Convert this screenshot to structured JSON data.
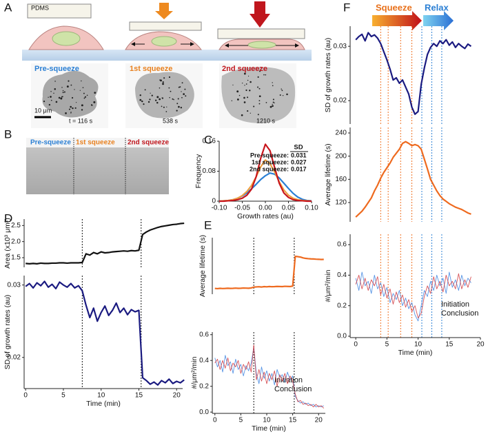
{
  "panel_labels": [
    "A",
    "B",
    "C",
    "D",
    "E",
    "F"
  ],
  "panel_a": {
    "pdms": "PDMS",
    "conditions": [
      "Pre-squeeze",
      "1st squeeze",
      "2nd squeeze"
    ],
    "scale_bar": "10 μm",
    "timestamps": [
      "t = 116 s",
      "538 s",
      "1210 s"
    ]
  },
  "panel_b": {
    "conditions": [
      "Pre-squeeze",
      "1st squeeze",
      "2nd squeeze"
    ]
  },
  "panel_f_header": {
    "squeeze": "Squeeze",
    "relax": "Relax"
  },
  "chart_data": [
    {
      "type": "line",
      "xlabel": "Growth rates (au)",
      "ylabel": "Frequency",
      "x": [
        -0.1,
        -0.09,
        -0.08,
        -0.07,
        -0.06,
        -0.05,
        -0.04,
        -0.03,
        -0.02,
        -0.01,
        0,
        0.01,
        0.02,
        0.03,
        0.04,
        0.05,
        0.06,
        0.07,
        0.08,
        0.09,
        0.1
      ],
      "series": [
        {
          "color": "#2a7fd4",
          "values": [
            0,
            0.001,
            0.002,
            0.004,
            0.008,
            0.014,
            0.022,
            0.033,
            0.045,
            0.058,
            0.068,
            0.075,
            0.072,
            0.062,
            0.048,
            0.034,
            0.021,
            0.011,
            0.005,
            0.002,
            0.001
          ]
        },
        {
          "color": "#f0a040",
          "values": [
            0,
            0.001,
            0.002,
            0.004,
            0.008,
            0.015,
            0.026,
            0.042,
            0.065,
            0.092,
            0.11,
            0.1,
            0.078,
            0.052,
            0.03,
            0.016,
            0.008,
            0.004,
            0.002,
            0.001,
            0
          ]
        },
        {
          "color": "#c8161d",
          "values": [
            0,
            0,
            0.001,
            0.002,
            0.004,
            0.008,
            0.016,
            0.032,
            0.065,
            0.115,
            0.152,
            0.135,
            0.09,
            0.048,
            0.022,
            0.01,
            0.004,
            0.002,
            0.001,
            0,
            0
          ]
        }
      ],
      "xlim": [
        -0.1,
        0.1
      ],
      "ylim": [
        0,
        0.16
      ],
      "xticks": [
        {
          "value": -0.1,
          "label": "-0.10"
        },
        -0.05,
        {
          "value": 0,
          "label": "0.00"
        },
        0.05,
        {
          "value": 0.1,
          "label": "0.10"
        }
      ],
      "yticks": [
        0,
        0.08,
        0.16
      ],
      "sd_table": {
        "header": "SD",
        "rows": [
          {
            "name": "Pre-squeeze:",
            "value": 0.031
          },
          {
            "name": "1st squeeze:",
            "value": 0.027
          },
          {
            "name": "2nd squeeze:",
            "value": 0.017
          }
        ]
      }
    },
    {
      "type": "line",
      "ylabel": "Area (x10³ μm²)",
      "x": [
        0,
        0.5,
        1,
        1.5,
        2,
        2.5,
        3,
        3.5,
        4,
        4.5,
        5,
        5.5,
        6,
        6.5,
        7,
        7.5,
        8,
        8.5,
        9,
        9.5,
        10,
        10.5,
        11,
        11.5,
        12,
        12.5,
        13,
        13.5,
        14,
        14.5,
        15,
        15.5,
        16,
        16.5,
        17,
        17.5,
        18,
        18.5,
        19,
        19.5,
        20,
        20.5,
        21
      ],
      "series": [
        {
          "color": "#111111",
          "values": [
            1.32,
            1.31,
            1.32,
            1.31,
            1.33,
            1.32,
            1.32,
            1.33,
            1.33,
            1.34,
            1.34,
            1.33,
            1.34,
            1.34,
            1.34,
            1.35,
            1.62,
            1.58,
            1.66,
            1.62,
            1.68,
            1.65,
            1.66,
            1.68,
            1.69,
            1.7,
            1.71,
            1.7,
            1.72,
            1.71,
            1.73,
            2.22,
            2.3,
            2.36,
            2.4,
            2.44,
            2.47,
            2.49,
            2.51,
            2.53,
            2.54,
            2.56,
            2.57
          ]
        }
      ],
      "xlim": [
        -0.2,
        20.8
      ],
      "ylim": [
        1.2,
        2.7
      ],
      "yticks": [
        1.5,
        {
          "value": 2,
          "label": "2.0"
        },
        2.5
      ],
      "vlines": [
        {
          "x": 7.5,
          "color": "#111111"
        },
        {
          "x": 15.3,
          "color": "#111111"
        }
      ]
    },
    {
      "type": "line",
      "xlabel": "Time (min)",
      "ylabel": "SD of growth rates (au)",
      "x": [
        0,
        0.5,
        1,
        1.5,
        2,
        2.5,
        3,
        3.5,
        4,
        4.5,
        5,
        5.5,
        6,
        6.5,
        7,
        7.5,
        8,
        8.5,
        9,
        9.5,
        10,
        10.5,
        11,
        11.5,
        12,
        12.5,
        13,
        13.5,
        14,
        14.5,
        15,
        15.5,
        16,
        16.5,
        17,
        17.5,
        18,
        18.5,
        19,
        19.5,
        20,
        20.5,
        21
      ],
      "series": [
        {
          "color": "#1a1a80",
          "values": [
            0.0298,
            0.0302,
            0.0296,
            0.0303,
            0.0299,
            0.0305,
            0.0297,
            0.0301,
            0.0295,
            0.0304,
            0.03,
            0.0297,
            0.0302,
            0.0296,
            0.0299,
            0.0292,
            0.0272,
            0.0255,
            0.0268,
            0.025,
            0.0262,
            0.0271,
            0.0258,
            0.0265,
            0.0275,
            0.0262,
            0.0268,
            0.0259,
            0.0266,
            0.0263,
            0.0265,
            0.0172,
            0.0168,
            0.0163,
            0.0166,
            0.0162,
            0.0168,
            0.0165,
            0.017,
            0.0164,
            0.0167,
            0.0165,
            0.0169
          ]
        }
      ],
      "xlim": [
        -0.2,
        20.8
      ],
      "ylim": [
        0.0157,
        0.0313
      ],
      "xticks": [
        0,
        5,
        10,
        15,
        20
      ],
      "yticks": [
        0.02,
        0.03
      ],
      "vlines": [
        {
          "x": 7.5,
          "color": "#111111"
        },
        {
          "x": 15.3,
          "color": "#111111"
        }
      ]
    },
    {
      "type": "line",
      "ylabel": "Average lifetime (s)",
      "x": [
        0,
        0.5,
        1,
        1.5,
        2,
        2.5,
        3,
        3.5,
        4,
        4.5,
        5,
        5.5,
        6,
        6.5,
        7,
        7.5,
        8,
        8.5,
        9,
        9.5,
        10,
        10.5,
        11,
        11.5,
        12,
        12.5,
        13,
        13.5,
        14,
        14.5,
        15,
        15.5,
        16,
        16.5,
        17,
        17.5,
        18,
        18.5,
        19,
        19.5,
        20,
        20.5,
        21
      ],
      "series": [
        {
          "color": "#ee6a1f",
          "values": [
            57,
            55,
            58,
            56,
            57,
            59,
            57,
            58,
            60,
            58,
            59,
            61,
            60,
            59,
            62,
            70,
            72,
            74,
            71,
            75,
            73,
            76,
            74,
            75,
            77,
            76,
            75,
            78,
            77,
            76,
            80,
            375,
            372,
            368,
            360,
            355,
            352,
            350,
            349,
            347,
            346,
            344,
            345
          ]
        }
      ],
      "xlim": [
        -0.5,
        21.3
      ],
      "ylim": [
        0,
        560
      ],
      "vlines": [
        {
          "x": 7.5,
          "color": "#111111"
        },
        {
          "x": 15.3,
          "color": "#111111"
        }
      ]
    },
    {
      "type": "line",
      "xlabel": "Time (min)",
      "ylabel": "#/μm²/min",
      "x": [
        0,
        0.5,
        1,
        1.5,
        2,
        2.5,
        3,
        3.5,
        4,
        4.5,
        5,
        5.5,
        6,
        6.5,
        7,
        7.5,
        8,
        8.5,
        9,
        9.5,
        10,
        10.5,
        11,
        11.5,
        12,
        12.5,
        13,
        13.5,
        14,
        14.5,
        15,
        15.5,
        16,
        16.5,
        17,
        17.5,
        18,
        18.5,
        19,
        19.5,
        20,
        20.5,
        21
      ],
      "series": [
        {
          "name": "Initiation",
          "color": "#3b82e0",
          "values": [
            0.42,
            0.35,
            0.4,
            0.31,
            0.44,
            0.36,
            0.39,
            0.3,
            0.41,
            0.33,
            0.37,
            0.28,
            0.36,
            0.32,
            0.38,
            0.5,
            0.3,
            0.22,
            0.35,
            0.26,
            0.32,
            0.24,
            0.3,
            0.21,
            0.33,
            0.27,
            0.29,
            0.23,
            0.31,
            0.25,
            0.28,
            0.12,
            0.09,
            0.07,
            0.08,
            0.06,
            0.07,
            0.05,
            0.06,
            0.04,
            0.05,
            0.04,
            0.05
          ]
        },
        {
          "name": "Conclusion",
          "color": "#d0343a",
          "values": [
            0.38,
            0.41,
            0.33,
            0.4,
            0.34,
            0.42,
            0.32,
            0.38,
            0.35,
            0.4,
            0.3,
            0.37,
            0.33,
            0.39,
            0.31,
            0.52,
            0.25,
            0.33,
            0.24,
            0.31,
            0.22,
            0.3,
            0.25,
            0.32,
            0.2,
            0.29,
            0.24,
            0.3,
            0.22,
            0.28,
            0.24,
            0.14,
            0.08,
            0.09,
            0.06,
            0.07,
            0.05,
            0.06,
            0.04,
            0.06,
            0.04,
            0.05,
            0.03
          ]
        }
      ],
      "xlim": [
        -0.5,
        21.3
      ],
      "ylim": [
        -0.01,
        0.62
      ],
      "xticks": [
        0,
        5,
        10,
        15,
        20
      ],
      "yticks": [
        {
          "value": 0,
          "label": "0.0"
        },
        0.2,
        0.4,
        0.6
      ],
      "vlines": [
        {
          "x": 7.5,
          "color": "#111111"
        },
        {
          "x": 15.3,
          "color": "#111111"
        }
      ]
    },
    {
      "type": "line",
      "ylabel": "SD of growth rates (au)",
      "x": [
        0,
        0.5,
        1,
        1.5,
        2,
        2.5,
        3,
        3.5,
        4,
        4.5,
        5,
        5.5,
        6,
        6.5,
        7,
        7.5,
        8,
        8.5,
        9,
        9.5,
        10,
        10.5,
        11,
        11.5,
        12,
        12.5,
        13,
        13.5,
        14,
        14.5,
        15,
        15.5,
        16,
        16.5,
        17,
        17.5,
        18,
        18.5
      ],
      "series": [
        {
          "color": "#1a1a80",
          "values": [
            0.0312,
            0.0318,
            0.0322,
            0.031,
            0.0325,
            0.0318,
            0.0321,
            0.0315,
            0.0305,
            0.029,
            0.0275,
            0.0258,
            0.0238,
            0.0242,
            0.0232,
            0.0238,
            0.0225,
            0.0212,
            0.0188,
            0.0175,
            0.018,
            0.023,
            0.026,
            0.0285,
            0.0298,
            0.0305,
            0.03,
            0.031,
            0.0305,
            0.0312,
            0.0302,
            0.0308,
            0.0298,
            0.0305,
            0.03,
            0.0296,
            0.0304,
            0.03
          ]
        }
      ],
      "xlim": [
        -0.9,
        20
      ],
      "ylim": [
        0.0157,
        0.0337
      ],
      "yticks": [
        0.02,
        0.03
      ],
      "vlines": [
        {
          "x": 4,
          "color": "#f07020"
        },
        {
          "x": 5.2,
          "color": "#f07020"
        },
        {
          "x": 7.2,
          "color": "#f07020"
        },
        {
          "x": 9,
          "color": "#f07020"
        },
        {
          "x": 10.6,
          "color": "#2a7fd4"
        },
        {
          "x": 12.2,
          "color": "#2a7fd4"
        },
        {
          "x": 13.8,
          "color": "#2a7fd4"
        }
      ]
    },
    {
      "type": "line",
      "ylabel": "Average lifetime (s)",
      "x": [
        0,
        0.5,
        1,
        1.5,
        2,
        2.5,
        3,
        3.5,
        4,
        4.5,
        5,
        5.5,
        6,
        6.5,
        7,
        7.5,
        8,
        8.5,
        9,
        9.5,
        10,
        10.5,
        11,
        11.5,
        12,
        12.5,
        13,
        13.5,
        14,
        14.5,
        15,
        15.5,
        16,
        16.5,
        17,
        17.5,
        18,
        18.5
      ],
      "series": [
        {
          "color": "#ee6a1f",
          "values": [
            95,
            100,
            105,
            112,
            120,
            128,
            140,
            150,
            162,
            172,
            180,
            188,
            198,
            205,
            212,
            222,
            225,
            222,
            218,
            220,
            218,
            212,
            195,
            178,
            160,
            150,
            140,
            132,
            126,
            122,
            118,
            115,
            112,
            110,
            108,
            105,
            102,
            100
          ]
        }
      ],
      "xlim": [
        -0.9,
        20
      ],
      "ylim": [
        86.7,
        249.5
      ],
      "yticks": [
        120,
        160,
        200,
        240
      ],
      "vlines": [
        {
          "x": 4,
          "color": "#f07020"
        },
        {
          "x": 5.2,
          "color": "#f07020"
        },
        {
          "x": 7.2,
          "color": "#f07020"
        },
        {
          "x": 9,
          "color": "#f07020"
        },
        {
          "x": 10.6,
          "color": "#2a7fd4"
        },
        {
          "x": 12.2,
          "color": "#2a7fd4"
        },
        {
          "x": 13.8,
          "color": "#2a7fd4"
        }
      ]
    },
    {
      "type": "line",
      "xlabel": "Time (min)",
      "ylabel": "#/μm²/min",
      "x": [
        0,
        0.5,
        1,
        1.5,
        2,
        2.5,
        3,
        3.5,
        4,
        4.5,
        5,
        5.5,
        6,
        6.5,
        7,
        7.5,
        8,
        8.5,
        9,
        9.5,
        10,
        10.5,
        11,
        11.5,
        12,
        12.5,
        13,
        13.5,
        14,
        14.5,
        15,
        15.5,
        16,
        16.5,
        17,
        17.5,
        18,
        18.5
      ],
      "series": [
        {
          "name": "Initiation",
          "color": "#3b82e0",
          "values": [
            0.38,
            0.3,
            0.42,
            0.33,
            0.36,
            0.28,
            0.4,
            0.31,
            0.35,
            0.26,
            0.32,
            0.22,
            0.28,
            0.24,
            0.3,
            0.2,
            0.25,
            0.18,
            0.22,
            0.14,
            0.1,
            0.2,
            0.3,
            0.26,
            0.36,
            0.3,
            0.4,
            0.33,
            0.38,
            0.28,
            0.42,
            0.32,
            0.37,
            0.3,
            0.4,
            0.33,
            0.38,
            0.35
          ]
        },
        {
          "name": "Conclusion",
          "color": "#d0343a",
          "values": [
            0.34,
            0.4,
            0.31,
            0.38,
            0.3,
            0.37,
            0.33,
            0.39,
            0.27,
            0.34,
            0.25,
            0.31,
            0.21,
            0.29,
            0.22,
            0.27,
            0.19,
            0.24,
            0.16,
            0.2,
            0.12,
            0.15,
            0.26,
            0.33,
            0.28,
            0.39,
            0.31,
            0.36,
            0.29,
            0.4,
            0.33,
            0.36,
            0.31,
            0.41,
            0.31,
            0.37,
            0.32,
            0.39
          ]
        }
      ],
      "xlim": [
        -0.9,
        20
      ],
      "ylim": [
        -0.009,
        0.668
      ],
      "xticks": [
        0,
        5,
        10,
        15,
        20
      ],
      "yticks": [
        {
          "value": 0,
          "label": "0.0"
        },
        0.2,
        0.4,
        0.6
      ],
      "vlines": [
        {
          "x": 4,
          "color": "#f07020"
        },
        {
          "x": 5.2,
          "color": "#f07020"
        },
        {
          "x": 7.2,
          "color": "#f07020"
        },
        {
          "x": 9,
          "color": "#f07020"
        },
        {
          "x": 10.6,
          "color": "#2a7fd4"
        },
        {
          "x": 12.2,
          "color": "#2a7fd4"
        },
        {
          "x": 13.8,
          "color": "#2a7fd4"
        }
      ]
    }
  ]
}
